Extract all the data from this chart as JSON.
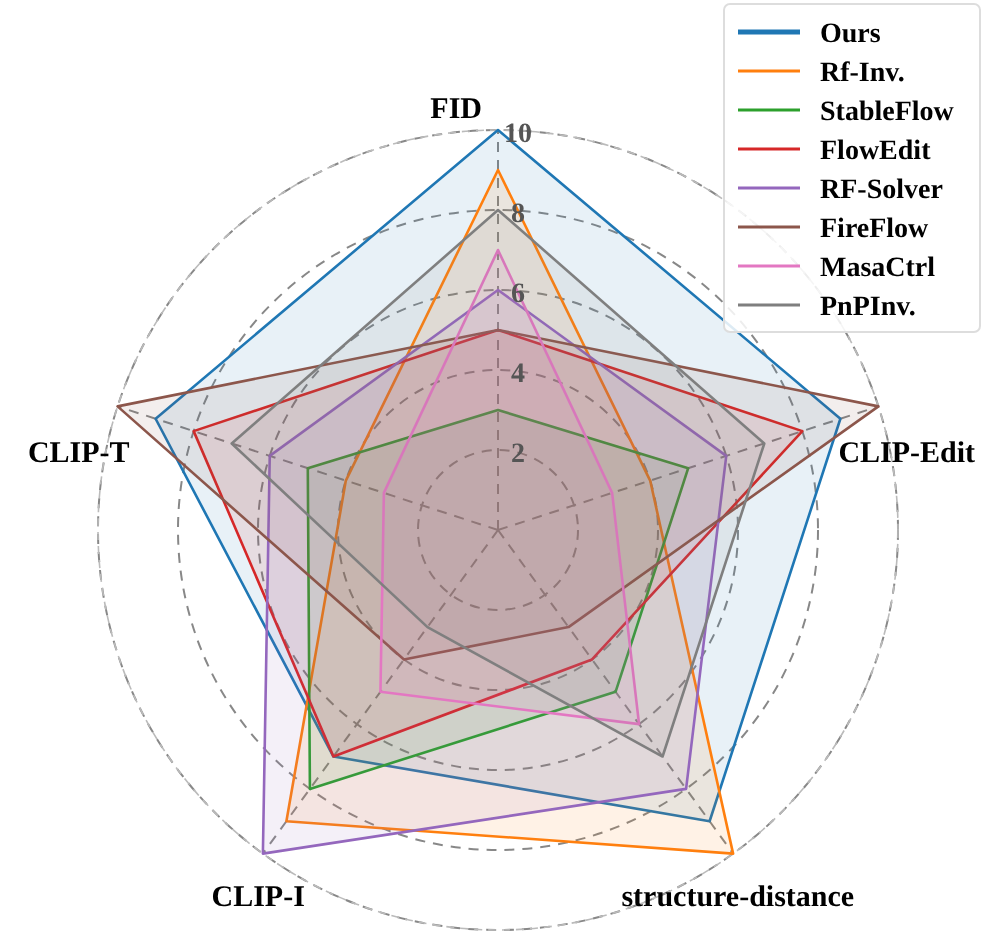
{
  "chart_data": {
    "type": "radar",
    "categories": [
      "FID",
      "CLIP-Edit",
      "structure-distance",
      "CLIP-I",
      "CLIP-T"
    ],
    "ylim": [
      0,
      10
    ],
    "yticks": [
      2,
      4,
      6,
      8,
      10
    ],
    "grid": true,
    "legend": "top right",
    "series": [
      {
        "name": "Ours",
        "color": "#1f77b4",
        "values": [
          10,
          9,
          9,
          7,
          9
        ]
      },
      {
        "name": "Rf-Inv.",
        "color": "#ff7f0e",
        "values": [
          9,
          4,
          10,
          9,
          4
        ]
      },
      {
        "name": "StableFlow",
        "color": "#2ca02c",
        "values": [
          3,
          5,
          5,
          8,
          5
        ]
      },
      {
        "name": "FlowEdit",
        "color": "#d62728",
        "values": [
          5,
          8,
          4,
          7,
          8
        ]
      },
      {
        "name": "RF-Solver",
        "color": "#9467bd",
        "values": [
          6,
          6,
          8,
          10,
          6
        ]
      },
      {
        "name": "FireFlow",
        "color": "#8c564b",
        "values": [
          5,
          10,
          3,
          4,
          10
        ]
      },
      {
        "name": "MasaCtrl",
        "color": "#e377c2",
        "values": [
          7,
          3,
          6,
          5,
          3
        ]
      },
      {
        "name": "PnPInv.",
        "color": "#7f7f7f",
        "values": [
          8,
          7,
          7,
          3,
          7
        ]
      }
    ]
  }
}
